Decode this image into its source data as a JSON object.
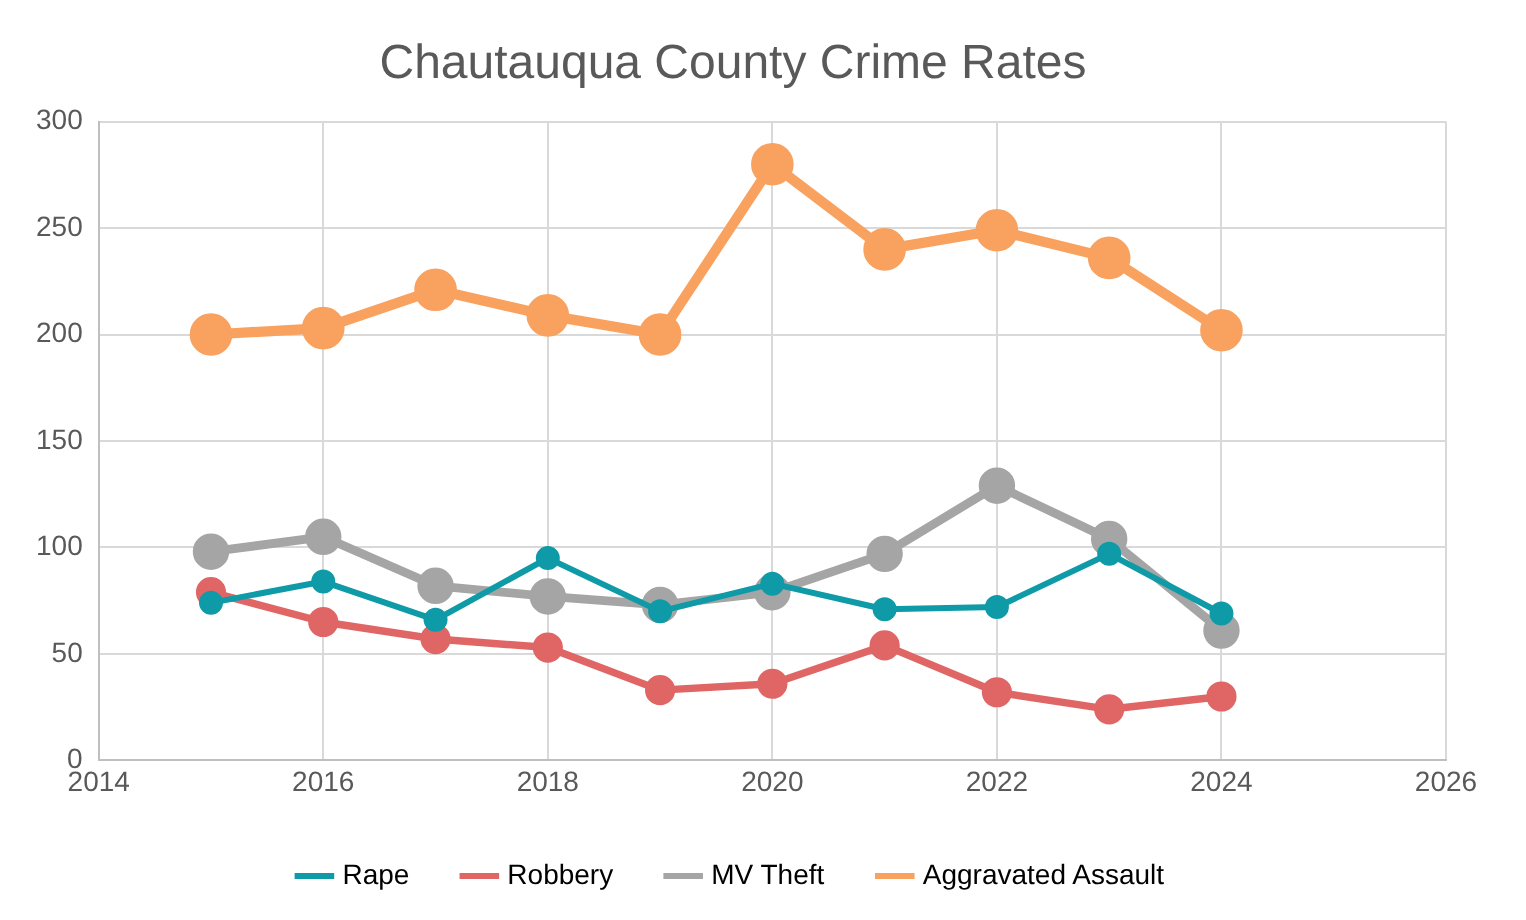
{
  "chart_data": {
    "type": "line",
    "title": "Chautauqua County Crime Rates",
    "x": [
      2015,
      2016,
      2017,
      2018,
      2019,
      2020,
      2021,
      2022,
      2023,
      2024
    ],
    "series": [
      {
        "name": "Rape",
        "color": "#0f9aa8",
        "values": [
          74,
          84,
          66,
          95,
          70,
          83,
          71,
          72,
          97,
          69
        ]
      },
      {
        "name": "Robbery",
        "color": "#e06666",
        "values": [
          79,
          65,
          57,
          53,
          33,
          36,
          54,
          32,
          24,
          30
        ]
      },
      {
        "name": "MV Theft",
        "color": "#a5a5a5",
        "values": [
          98,
          105,
          82,
          77,
          73,
          79,
          97,
          129,
          104,
          61
        ]
      },
      {
        "name": "Aggravated Assault",
        "color": "#f9a15e",
        "values": [
          200,
          203,
          221,
          209,
          200,
          280,
          240,
          249,
          236,
          202
        ]
      }
    ],
    "xlim": [
      2014,
      2026
    ],
    "xticks": [
      2014,
      2016,
      2018,
      2020,
      2022,
      2024,
      2026
    ],
    "ylim": [
      0,
      300
    ],
    "yticks": [
      0,
      50,
      100,
      150,
      200,
      250,
      300
    ],
    "grid": true,
    "legend": "bottom",
    "marker": "circle",
    "line_style": "solid"
  }
}
